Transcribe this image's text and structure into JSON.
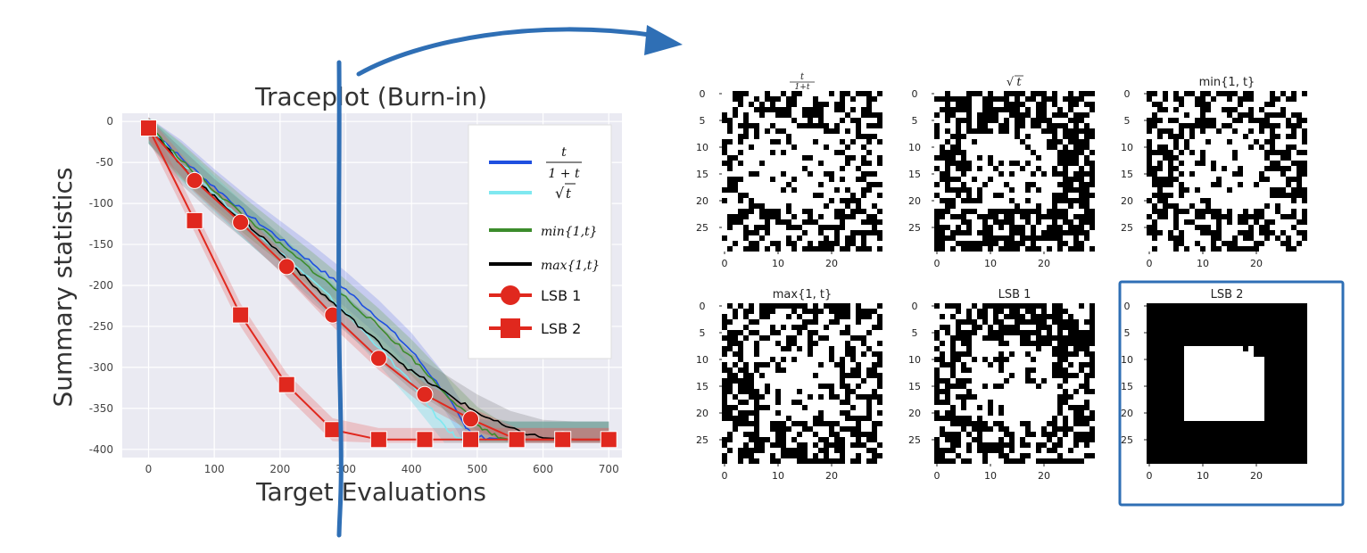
{
  "trace_plot": {
    "title": "Traceplot (Burn-in)",
    "xlabel": "Target Evaluations",
    "ylabel": "Summary statistics"
  },
  "chart_data": [
    {
      "type": "line",
      "title": "Traceplot (Burn-in)",
      "xlabel": "Target Evaluations",
      "ylabel": "Summary statistics",
      "xlim": [
        -40,
        720
      ],
      "ylim": [
        -410,
        10
      ],
      "xticks": [
        0,
        100,
        200,
        300,
        400,
        500,
        600,
        700
      ],
      "yticks": [
        0,
        -50,
        -100,
        -150,
        -200,
        -250,
        -300,
        -350,
        -400
      ],
      "grid": true,
      "legend_position": "top-right",
      "series": [
        {
          "name": "t/(1+t)",
          "legend_parts": [
            "t",
            "1 + t"
          ],
          "color": "#1f4fe0",
          "x": [
            0,
            50,
            100,
            150,
            200,
            250,
            300,
            350,
            400,
            450,
            480,
            500,
            550,
            600,
            650,
            700
          ],
          "y": [
            -5,
            -45,
            -80,
            -113,
            -143,
            -173,
            -205,
            -240,
            -280,
            -330,
            -370,
            -385,
            -388,
            -388,
            -388,
            -388
          ]
        },
        {
          "name": "√t",
          "legend_parts": [
            "√",
            "t"
          ],
          "color": "#7fe8f0",
          "x": [
            0,
            50,
            100,
            150,
            200,
            250,
            300,
            350,
            400,
            450,
            470,
            500,
            550,
            600,
            650,
            700
          ],
          "y": [
            -5,
            -50,
            -88,
            -125,
            -160,
            -195,
            -233,
            -275,
            -320,
            -372,
            -386,
            -388,
            -388,
            -388,
            -388,
            -388
          ]
        },
        {
          "name": "min{1,t}",
          "color": "#3c8c2c",
          "x": [
            0,
            50,
            100,
            150,
            200,
            250,
            300,
            350,
            400,
            450,
            500,
            530,
            550,
            600,
            650,
            700
          ],
          "y": [
            -5,
            -48,
            -84,
            -118,
            -150,
            -182,
            -215,
            -250,
            -288,
            -330,
            -370,
            -385,
            -388,
            -388,
            -388,
            -388
          ]
        },
        {
          "name": "max{1,t}",
          "color": "#000000",
          "x": [
            0,
            50,
            100,
            150,
            200,
            250,
            300,
            350,
            400,
            450,
            500,
            550,
            600,
            650,
            700
          ],
          "y": [
            -5,
            -55,
            -92,
            -125,
            -160,
            -200,
            -235,
            -270,
            -305,
            -330,
            -355,
            -375,
            -386,
            -388,
            -388
          ]
        },
        {
          "name": "LSB 1",
          "color": "#e0281e",
          "marker": "circle",
          "x": [
            0,
            70,
            140,
            210,
            280,
            350,
            420,
            490,
            560,
            630,
            700
          ],
          "y": [
            -8,
            -72,
            -123,
            -177,
            -236,
            -289,
            -333,
            -363,
            -388,
            -388,
            -388
          ]
        },
        {
          "name": "LSB 2",
          "color": "#e0281e",
          "marker": "square",
          "x": [
            0,
            70,
            140,
            210,
            280,
            350,
            420,
            490,
            560,
            630,
            700
          ],
          "y": [
            -8,
            -121,
            -236,
            -321,
            -376,
            -388,
            -388,
            -388,
            -388,
            -388,
            -388
          ]
        }
      ]
    },
    {
      "type": "heatmap",
      "grid_size": 30,
      "panels": [
        {
          "title": "t/(1+t)",
          "title_parts": [
            "t",
            "1+t"
          ],
          "density": 0.55,
          "seed": 11
        },
        {
          "title": "√t",
          "title_parts": [
            "√",
            "t"
          ],
          "density": 0.35,
          "seed": 23
        },
        {
          "title": "min{1, t}",
          "density": 0.5,
          "seed": 37
        },
        {
          "title": "max{1, t}",
          "density": 0.45,
          "seed": 53
        },
        {
          "title": "LSB 1",
          "density": 0.4,
          "seed": 71
        },
        {
          "title": "LSB 2",
          "density": 0.0,
          "seed": 0,
          "clean": true
        }
      ],
      "ticks": [
        0,
        5,
        10,
        15,
        20,
        25
      ],
      "xticks": [
        0,
        10,
        20
      ],
      "highlight_panel": "LSB 2"
    }
  ],
  "annotation_color": "#2f6fb5"
}
